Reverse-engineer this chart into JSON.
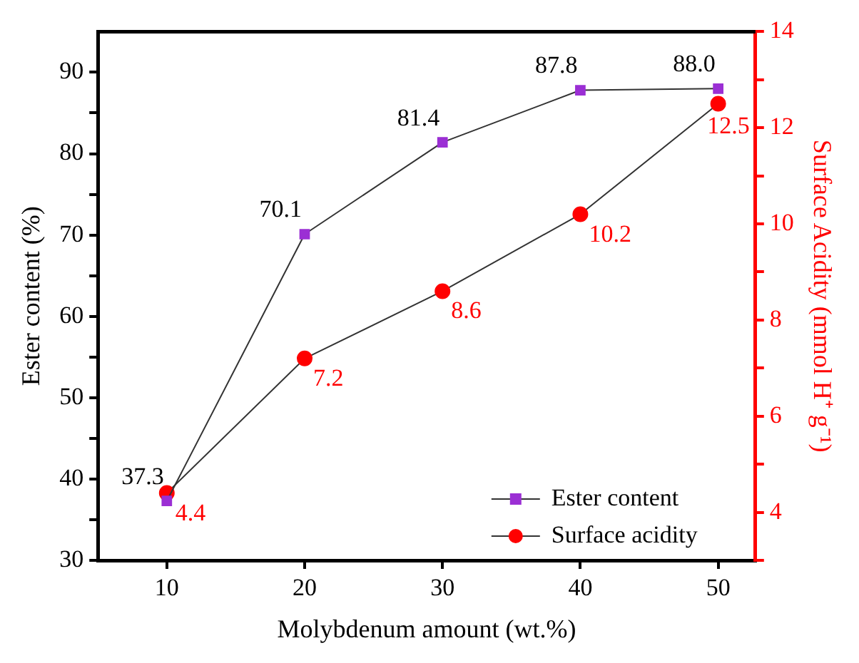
{
  "chart_data": {
    "type": "line",
    "xlabel": "Molybdenum amount (wt.%)",
    "ylabel": "Ester content (%)",
    "y2label": "Surface Acidity (mmol H⁺ g⁻¹)",
    "x": [
      10,
      20,
      30,
      40,
      50
    ],
    "series": [
      {
        "name": "Ester content",
        "color": "#9b2fd4",
        "marker": "square",
        "values": [
          37.3,
          70.1,
          81.4,
          87.8,
          88.0
        ],
        "value_labels": [
          "37.3",
          "70.1",
          "81.4",
          "87.8",
          "88.0"
        ]
      },
      {
        "name": "Surface acidity",
        "color": "#ff0000",
        "marker": "circle",
        "axis": "y2",
        "values": [
          4.4,
          7.2,
          8.6,
          10.2,
          12.5
        ],
        "value_labels": [
          "4.4",
          "7.2",
          "8.6",
          "10.2",
          "12.5"
        ]
      }
    ],
    "xlim": [
      5,
      52.7
    ],
    "xticks": [
      10,
      20,
      30,
      40,
      50
    ],
    "ylim": [
      30,
      95
    ],
    "yticks": [
      30,
      {
        "value": 35,
        "label": null
      },
      40,
      {
        "value": 45,
        "label": null
      },
      50,
      {
        "value": 55,
        "label": null
      },
      60,
      {
        "value": 65,
        "label": null
      },
      70,
      {
        "value": 75,
        "label": null
      },
      80,
      {
        "value": 85,
        "label": null
      },
      90
    ],
    "y2lim": [
      3,
      14
    ],
    "y2ticks": [
      {
        "value": 3,
        "label": null
      },
      4,
      {
        "value": 5,
        "label": null
      },
      6,
      {
        "value": 7,
        "label": null
      },
      8,
      {
        "value": 9,
        "label": null
      },
      10,
      {
        "value": 11,
        "label": null
      },
      12,
      {
        "value": 13,
        "label": null
      },
      14
    ],
    "legend": "bottom right",
    "grid": false
  }
}
